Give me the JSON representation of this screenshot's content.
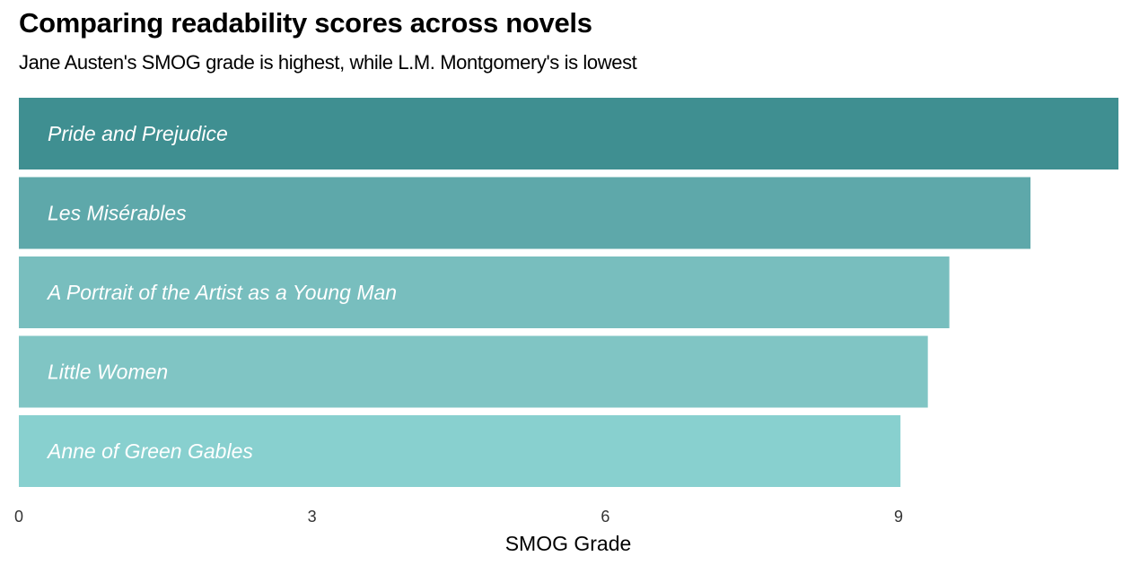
{
  "header": {
    "title": "Comparing readability scores across novels",
    "subtitle": "Jane Austen's SMOG grade is highest, while L.M. Montgomery's is lowest"
  },
  "chart_data": {
    "type": "bar",
    "orientation": "horizontal",
    "categories": [
      "Pride and Prejudice",
      "Les Misérables",
      "A Portrait of the Artist as a Young Man",
      "Little Women",
      "Anne of Green Gables"
    ],
    "values": [
      11.25,
      10.35,
      9.52,
      9.3,
      9.02
    ],
    "colors": [
      "#3f8f91",
      "#5ea8aa",
      "#78bebe",
      "#80c5c4",
      "#88d0cf"
    ],
    "xlabel": "SMOG Grade",
    "ylabel": "",
    "xlim": [
      0,
      11.25
    ],
    "xticks": [
      0,
      3,
      6,
      9
    ],
    "grid": false,
    "legend": "none"
  }
}
